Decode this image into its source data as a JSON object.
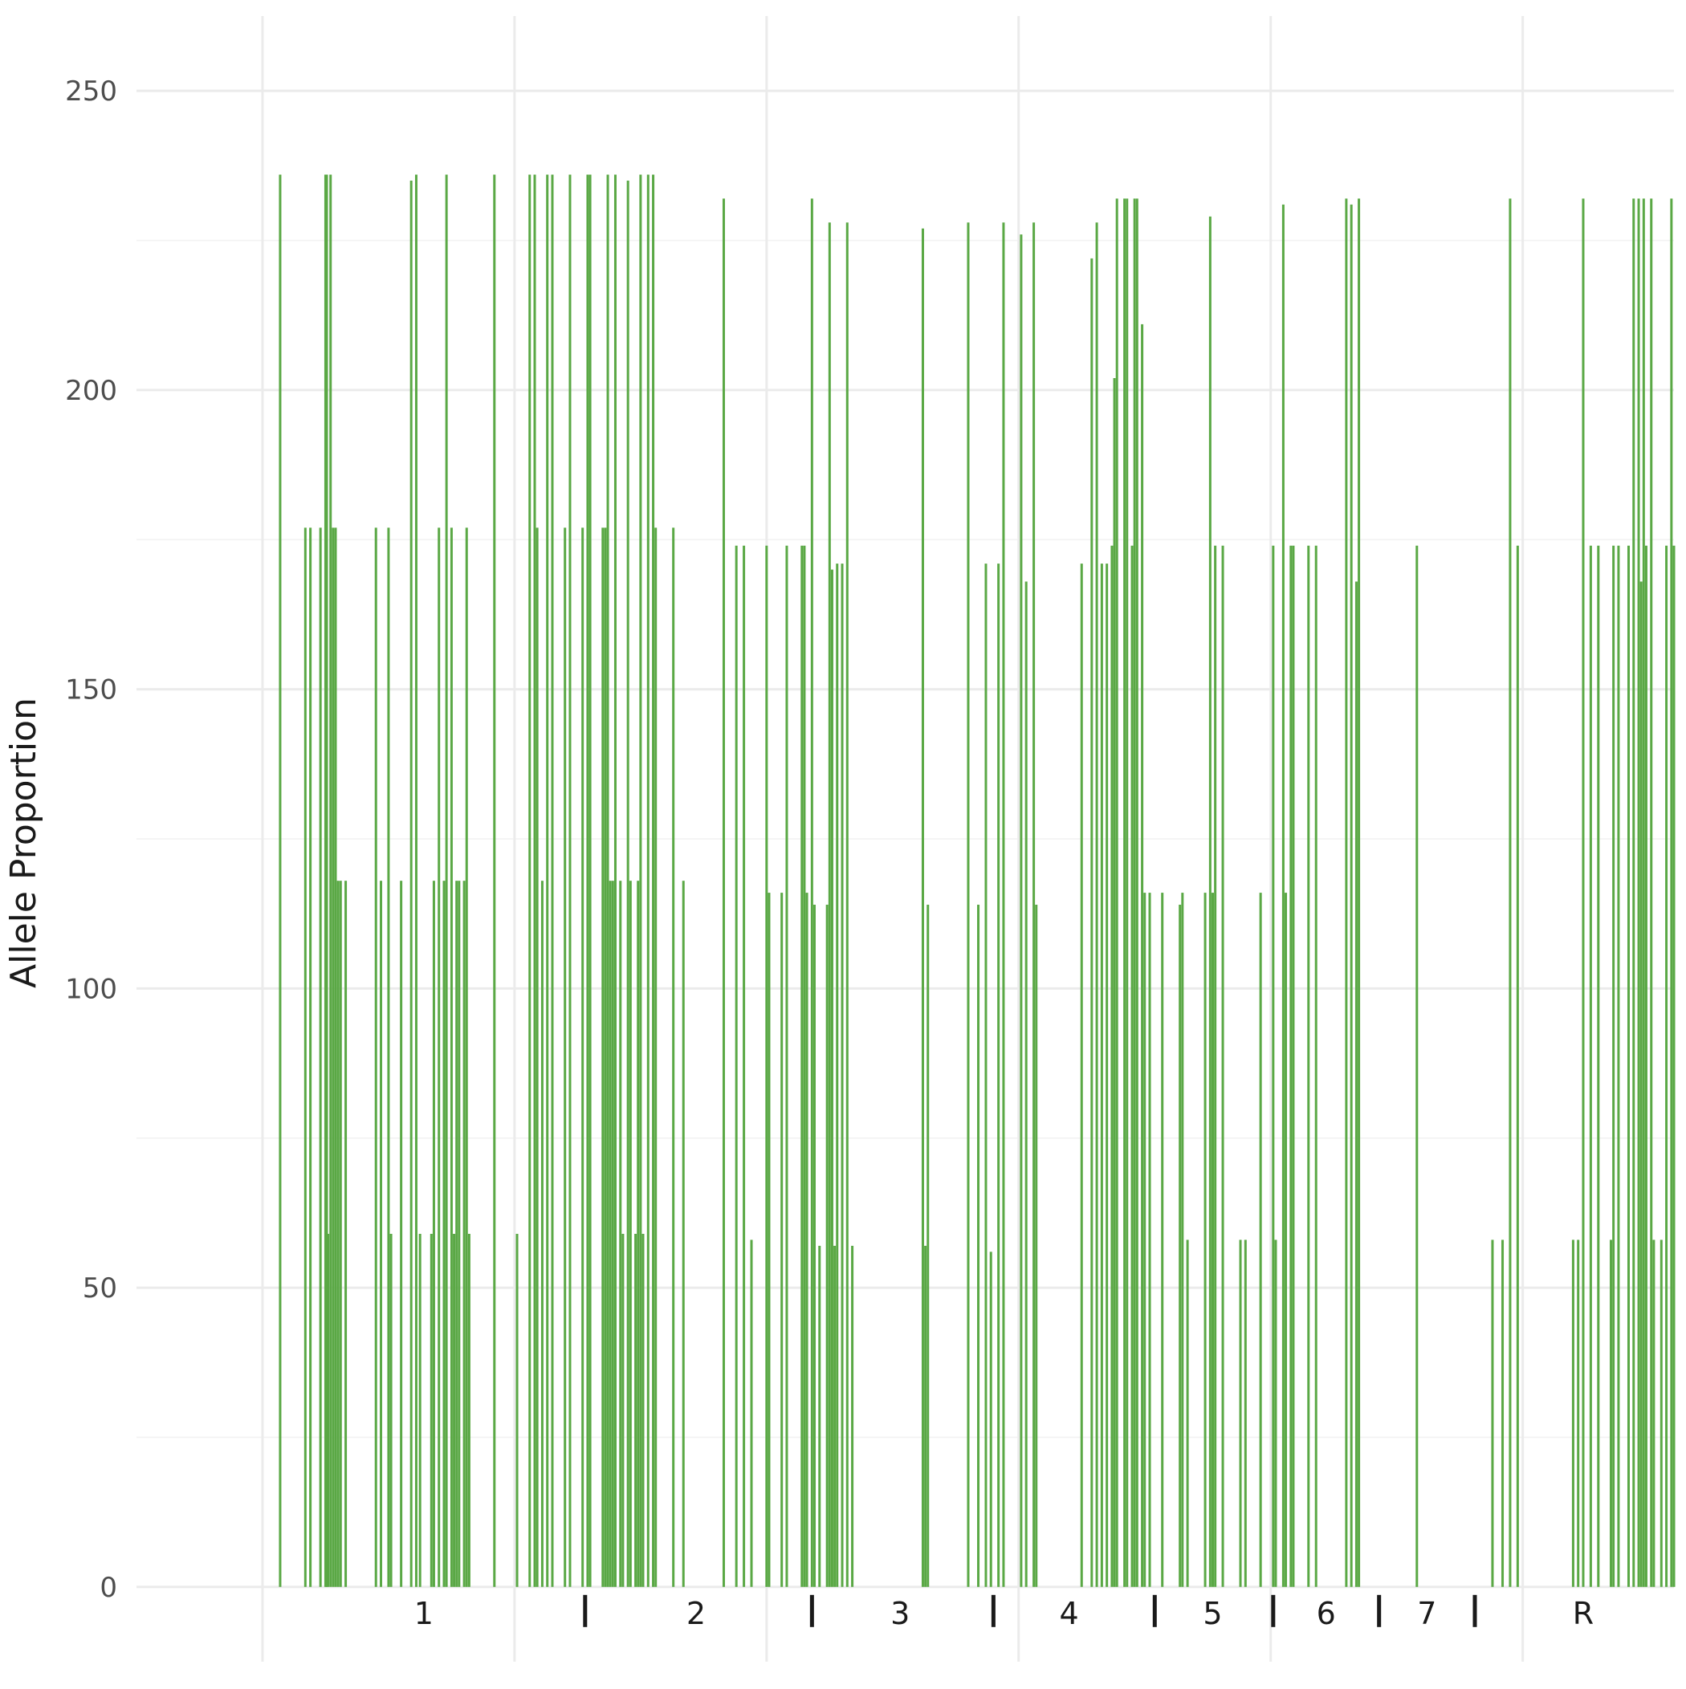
{
  "chart_data": {
    "type": "bar",
    "ylabel": "Allele Proportion",
    "xlabel": "",
    "title": "",
    "ylim": [
      -12.5,
      262.5
    ],
    "xlim": [
      -0.5,
      5.6
    ],
    "y_ticks": [
      0,
      50,
      100,
      150,
      200,
      250
    ],
    "x_gridlines": [
      0,
      1,
      2,
      3,
      4,
      5,
      6
    ],
    "bar_color": "#5aa845",
    "bar_width": 0.014,
    "group_labels": [
      {
        "label": "1",
        "x": 0.64
      },
      {
        "label": "2",
        "x": 1.72
      },
      {
        "label": "3",
        "x": 2.53
      },
      {
        "label": "4",
        "x": 3.2
      },
      {
        "label": "5",
        "x": 3.77
      },
      {
        "label": "6",
        "x": 4.22
      },
      {
        "label": "7",
        "x": 4.62
      },
      {
        "label": "R",
        "x": 5.24
      }
    ],
    "group_separators": [
      1.28,
      2.18,
      2.9,
      3.54,
      4.01,
      4.43,
      4.81
    ],
    "x": [
      0.07,
      0.17,
      0.19,
      0.23,
      0.25,
      0.255,
      0.26,
      0.27,
      0.28,
      0.29,
      0.3,
      0.31,
      0.33,
      0.45,
      0.47,
      0.5,
      0.51,
      0.55,
      0.59,
      0.61,
      0.625,
      0.67,
      0.68,
      0.7,
      0.72,
      0.73,
      0.75,
      0.76,
      0.77,
      0.78,
      0.8,
      0.81,
      0.82,
      0.92,
      1.01,
      1.06,
      1.08,
      1.09,
      1.11,
      1.13,
      1.15,
      1.2,
      1.22,
      1.27,
      1.29,
      1.3,
      1.35,
      1.36,
      1.37,
      1.38,
      1.39,
      1.4,
      1.42,
      1.43,
      1.45,
      1.46,
      1.48,
      1.49,
      1.5,
      1.51,
      1.53,
      1.55,
      1.56,
      1.63,
      1.67,
      1.83,
      1.88,
      1.91,
      1.94,
      2.0,
      2.01,
      2.06,
      2.08,
      2.14,
      2.15,
      2.16,
      2.18,
      2.19,
      2.21,
      2.24,
      2.25,
      2.26,
      2.27,
      2.28,
      2.3,
      2.32,
      2.34,
      2.62,
      2.63,
      2.64,
      2.8,
      2.84,
      2.87,
      2.89,
      2.92,
      2.94,
      3.01,
      3.03,
      3.06,
      3.07,
      3.25,
      3.29,
      3.31,
      3.33,
      3.35,
      3.37,
      3.38,
      3.39,
      3.42,
      3.43,
      3.45,
      3.46,
      3.47,
      3.49,
      3.5,
      3.52,
      3.57,
      3.64,
      3.65,
      3.67,
      3.74,
      3.76,
      3.77,
      3.78,
      3.81,
      3.88,
      3.9,
      3.96,
      4.01,
      4.02,
      4.05,
      4.06,
      4.08,
      4.09,
      4.15,
      4.18,
      4.3,
      4.32,
      4.34,
      4.35,
      4.58,
      4.88,
      4.92,
      4.95,
      4.98,
      5.2,
      5.22,
      5.24,
      5.27,
      5.3,
      5.35,
      5.36,
      5.38,
      5.42,
      5.44,
      5.46,
      5.47,
      5.48,
      5.49,
      5.51,
      5.52,
      5.55,
      5.57,
      5.59,
      5.6
    ],
    "values": [
      236,
      177,
      177,
      177,
      236,
      236,
      59,
      236,
      177,
      177,
      118,
      118,
      118,
      177,
      118,
      177,
      59,
      118,
      235,
      236,
      59,
      59,
      118,
      177,
      118,
      236,
      177,
      59,
      118,
      118,
      118,
      177,
      59,
      236,
      59,
      236,
      236,
      177,
      118,
      236,
      236,
      177,
      236,
      177,
      236,
      236,
      177,
      177,
      236,
      118,
      118,
      236,
      118,
      59,
      235,
      118,
      59,
      118,
      236,
      59,
      236,
      236,
      177,
      177,
      118,
      232,
      174,
      174,
      58,
      174,
      116,
      116,
      174,
      174,
      174,
      116,
      232,
      114,
      57,
      114,
      228,
      170,
      57,
      171,
      171,
      228,
      57,
      227,
      57,
      114,
      228,
      114,
      171,
      56,
      171,
      228,
      226,
      168,
      228,
      114,
      171,
      222,
      228,
      171,
      171,
      174,
      202,
      232,
      232,
      232,
      174,
      232,
      232,
      211,
      116,
      116,
      116,
      114,
      116,
      58,
      116,
      229,
      116,
      174,
      174,
      58,
      58,
      116,
      174,
      58,
      231,
      116,
      174,
      174,
      174,
      174,
      232,
      231,
      168,
      232,
      174,
      58,
      58,
      232,
      174,
      58,
      58,
      232,
      174,
      174,
      58,
      174,
      174,
      174,
      232,
      232,
      168,
      232,
      174,
      232,
      58,
      58,
      174,
      232,
      174
    ]
  }
}
